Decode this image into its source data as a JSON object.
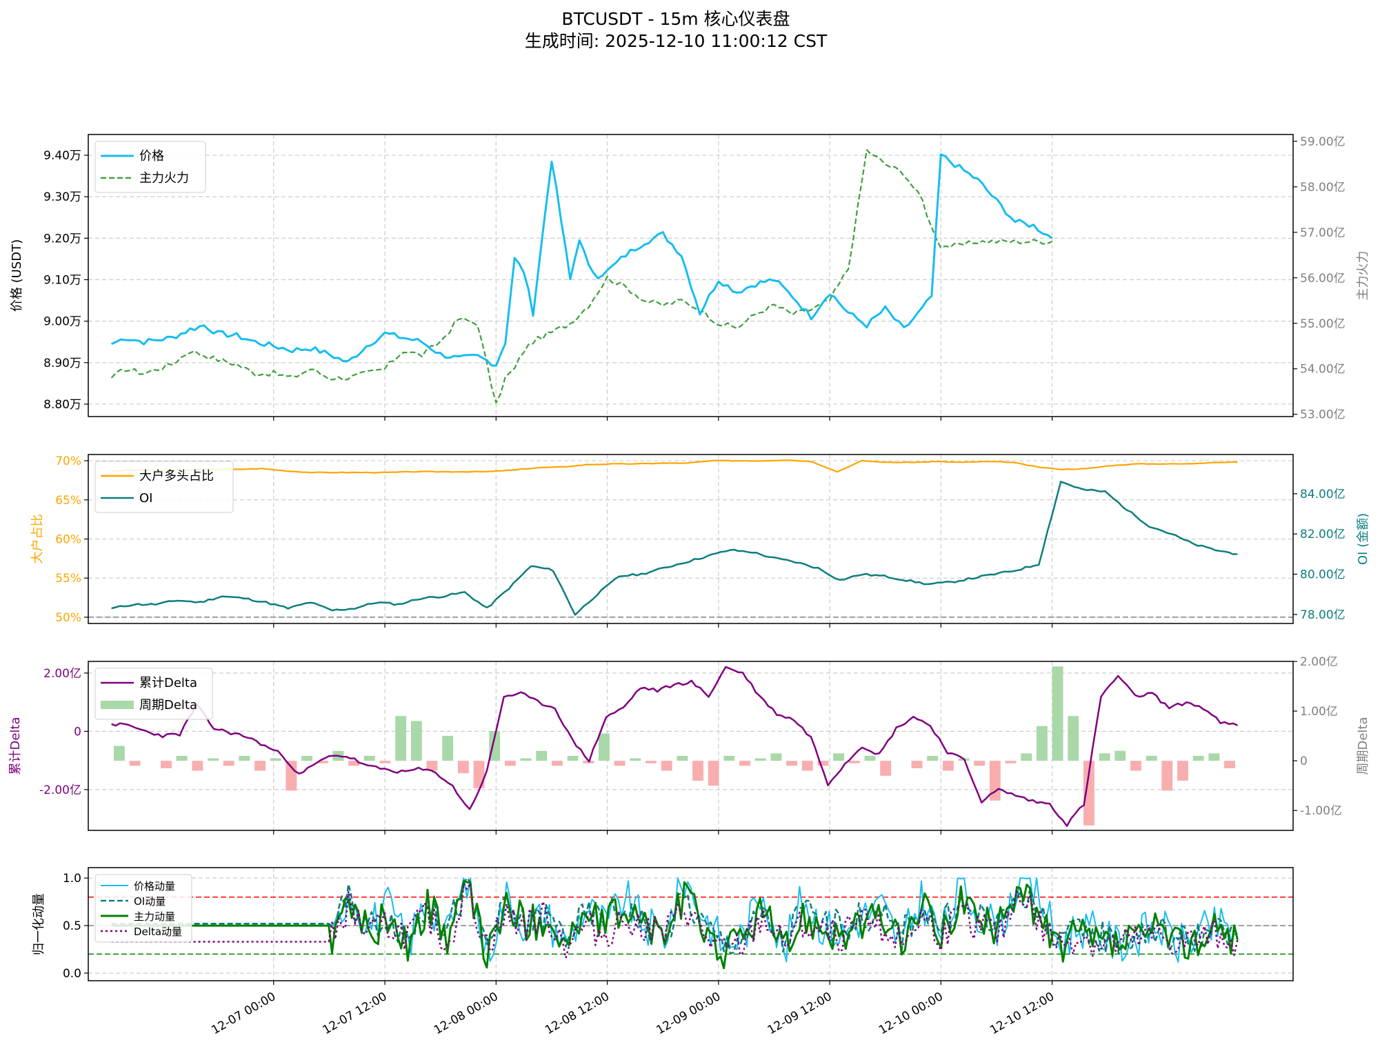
{
  "figure": {
    "title_line1": "BTCUSDT - 15m 核心仪表盘",
    "title_line2": "生成时间: 2025-12-10 11:00:12 CST"
  },
  "colors": {
    "price": "#16bdf0",
    "main_force": "#3f9e3f",
    "big_long_ratio": "#ffa500",
    "oi": "#0e7d7d",
    "cum_delta": "#7f007f",
    "bar_pos": "#a9d8a9",
    "bar_neg": "#f8aeae",
    "right_axis_gray": "#808080",
    "mom_oi": "#0e7d7d",
    "mom_main": "#008000",
    "mom_delta": "#800080",
    "ref_red": "#ff0000",
    "ref_gray": "#808080",
    "ref_green": "#008000"
  },
  "chart_data": [
    {
      "type": "line",
      "panel": "price",
      "ylabel": "价格 (USDT)",
      "ylabel_right": "主力火力",
      "x_ticks": [
        "12-07 00:00",
        "12-07 12:00",
        "12-08 00:00",
        "12-08 12:00",
        "12-09 00:00",
        "12-09 12:00",
        "12-10 00:00",
        "12-10 12:00"
      ],
      "y_ticks": [
        "8.80万",
        "8.90万",
        "9.00万",
        "9.10万",
        "9.20万",
        "9.30万",
        "9.40万"
      ],
      "y_ticks_right": [
        "53.00亿",
        "54.00亿",
        "55.00亿",
        "56.00亿",
        "57.00亿",
        "58.00亿",
        "59.00亿"
      ],
      "ylim": [
        87700,
        94500
      ],
      "ylim_right": [
        52.95,
        59.15
      ],
      "grid": true,
      "legend": "upper left",
      "x_hours_from_12_07_00": [
        -17.5,
        -16,
        -14,
        -12.5,
        -11,
        -9,
        -7.5,
        -6,
        -4,
        -2,
        0,
        2,
        4,
        6,
        8,
        10,
        12,
        14,
        16,
        18,
        20,
        22,
        24,
        25,
        26,
        27,
        28,
        30,
        32,
        33,
        34,
        35,
        36,
        38,
        40,
        42,
        44,
        46,
        48,
        50,
        52,
        54,
        56,
        58,
        60,
        62,
        64,
        66,
        68,
        70,
        71,
        72,
        74,
        76,
        78,
        80,
        82,
        84,
        86,
        88,
        90,
        92,
        94,
        96,
        98,
        100,
        102,
        104
      ],
      "series": [
        {
          "name": "价格",
          "axis": "left",
          "values": [
            89450,
            89600,
            89500,
            89550,
            89600,
            89800,
            89900,
            89700,
            89650,
            89500,
            89400,
            89300,
            89350,
            89200,
            89000,
            89400,
            89700,
            89600,
            89500,
            89200,
            89100,
            89150,
            88950,
            89500,
            91500,
            91200,
            90200,
            93900,
            91000,
            92000,
            91300,
            91100,
            91200,
            91600,
            91900,
            92100,
            91600,
            90200,
            91000,
            90700,
            90900,
            91000,
            90600,
            90100,
            90700,
            90200,
            89900,
            90300,
            89800,
            90300,
            90600,
            94000,
            93700,
            93400,
            92900,
            92400,
            92300,
            92000
          ]
        },
        {
          "name": "主力火力",
          "axis": "right",
          "values": [
            53.8,
            54.0,
            53.9,
            54.0,
            54.1,
            54.4,
            54.3,
            54.2,
            54.1,
            53.9,
            53.9,
            53.8,
            54.0,
            53.8,
            53.8,
            53.9,
            54.0,
            54.4,
            54.3,
            54.6,
            55.1,
            55.0,
            53.2,
            53.8,
            54.0,
            54.4,
            54.6,
            54.8,
            55.0,
            55.2,
            55.4,
            55.7,
            56.0,
            55.8,
            55.5,
            55.4,
            55.5,
            55.3,
            55.0,
            54.9,
            55.2,
            55.4,
            55.2,
            55.3,
            55.5,
            56.2,
            58.8,
            58.5,
            58.3,
            57.7,
            57.1,
            56.7,
            56.7,
            56.8,
            56.8,
            56.8,
            56.8,
            56.8
          ]
        }
      ]
    },
    {
      "type": "line",
      "panel": "ratio_oi",
      "ylabel": "大户占比",
      "ylabel_right": "OI (金额)",
      "y_ticks": [
        "50%",
        "55%",
        "60%",
        "65%",
        "70%"
      ],
      "y_ticks_right": [
        "78.00亿",
        "80.00亿",
        "82.00亿",
        "84.00亿"
      ],
      "ylim": [
        49.2,
        70.8
      ],
      "ylim_right": [
        77.55,
        85.95
      ],
      "grid": true,
      "legend": "upper left",
      "reference_line": 50,
      "series": [
        {
          "name": "大户多头占比",
          "axis": "left",
          "values": [
            68.7,
            68.8,
            68.8,
            68.8,
            68.9,
            68.9,
            69.0,
            68.7,
            68.5,
            68.5,
            68.5,
            68.5,
            68.6,
            68.6,
            68.6,
            68.6,
            68.8,
            69.1,
            69.2,
            69.5,
            69.6,
            69.6,
            69.7,
            69.7,
            70.0,
            70.0,
            70.0,
            70.1,
            69.9,
            68.6,
            70.0,
            69.8,
            69.8,
            69.9,
            69.8,
            69.9,
            69.8,
            69.2,
            68.9,
            69.0,
            69.4,
            69.6,
            69.6,
            69.6,
            69.8,
            69.8
          ]
        },
        {
          "name": "OI",
          "axis": "right",
          "values": [
            78.3,
            78.5,
            78.5,
            78.7,
            78.6,
            78.9,
            78.8,
            78.6,
            78.3,
            78.6,
            78.2,
            78.3,
            78.6,
            78.5,
            78.8,
            78.9,
            79.1,
            78.3,
            79.3,
            80.4,
            80.2,
            78.0,
            79.0,
            79.9,
            80.0,
            80.3,
            80.6,
            80.9,
            81.2,
            81.1,
            80.8,
            80.6,
            80.3,
            79.7,
            80.0,
            79.9,
            79.7,
            79.5,
            79.6,
            79.8,
            80.0,
            80.2,
            80.5,
            84.6,
            84.2,
            84.1,
            83.2,
            82.4,
            82.0,
            81.5,
            81.2,
            81.0
          ]
        }
      ]
    },
    {
      "type": "bar+line",
      "panel": "delta",
      "ylabel": "累计Delta",
      "ylabel_right": "周期Delta",
      "y_ticks": [
        "-2.00亿",
        "0",
        "2.00亿"
      ],
      "y_ticks_right": [
        "-1.00亿",
        "0",
        "1.00亿",
        "2.00亿"
      ],
      "ylim": [
        -3.4,
        2.4
      ],
      "ylim_right": [
        -1.4,
        2.0
      ],
      "grid": true,
      "legend": "upper left",
      "series": [
        {
          "name": "累计Delta",
          "type": "line",
          "axis": "left",
          "values": [
            0.25,
            0.2,
            0.0,
            -0.15,
            -0.1,
            0.9,
            0.1,
            -0.05,
            -0.2,
            -0.5,
            -0.8,
            -1.5,
            -1.1,
            -0.8,
            -0.9,
            -1.2,
            -1.3,
            -1.4,
            -1.3,
            -1.4,
            -1.9,
            -2.7,
            -1.4,
            1.2,
            1.3,
            1.0,
            0.8,
            -0.3,
            -1.0,
            0.5,
            0.8,
            1.5,
            1.4,
            1.6,
            1.7,
            1.2,
            2.2,
            2.0,
            1.2,
            0.6,
            0.4,
            -0.2,
            -1.8,
            -1.1,
            -0.5,
            -0.8,
            0.1,
            0.5,
            0.2,
            -0.7,
            -1.0,
            -2.4,
            -2.0,
            -2.2,
            -2.4,
            -2.5,
            -3.2,
            -2.5,
            1.2,
            1.9,
            1.2,
            1.3,
            0.8,
            1.0,
            0.8,
            0.3,
            0.2
          ]
        },
        {
          "name": "周期Delta",
          "type": "bar",
          "axis": "right",
          "values": [
            0.3,
            -0.1,
            0.0,
            -0.15,
            0.1,
            -0.2,
            0.05,
            -0.1,
            0.1,
            -0.2,
            0.05,
            -0.6,
            0.1,
            -0.05,
            0.2,
            -0.1,
            0.1,
            -0.05,
            0.9,
            0.8,
            -0.2,
            0.5,
            -0.25,
            -0.55,
            0.6,
            -0.1,
            0.05,
            0.2,
            -0.1,
            0.1,
            -0.05,
            0.55,
            -0.1,
            0.05,
            -0.05,
            -0.2,
            0.1,
            -0.4,
            -0.5,
            0.1,
            -0.1,
            0.05,
            0.15,
            -0.1,
            -0.2,
            -0.1,
            0.15,
            -0.05,
            0.1,
            -0.3,
            0.0,
            -0.15,
            0.1,
            -0.2,
            0.05,
            -0.1,
            -0.8,
            -0.05,
            0.15,
            0.7,
            1.9,
            0.9,
            -1.3,
            0.15,
            0.2,
            -0.2,
            0.1,
            -0.6,
            -0.4,
            0.1,
            0.15,
            -0.15
          ]
        }
      ]
    },
    {
      "type": "line",
      "panel": "momentum",
      "ylabel": "归一化动量",
      "y_ticks": [
        "0.0",
        "0.5",
        "1.0"
      ],
      "ylim": [
        -0.08,
        1.11
      ],
      "grid": true,
      "legend": "upper left",
      "reference_lines": [
        0.8,
        0.5,
        0.2
      ],
      "series": [
        {
          "name": "价格动量",
          "values": [
            0.5,
            0.5,
            0.5,
            0.5,
            0.5,
            0.5,
            0.4,
            0.9,
            0.3,
            0.8,
            0.6,
            0.2,
            0.9,
            0.5,
            0.7,
            0.3,
            0.8,
            0.4,
            1.0,
            0.2,
            0.8,
            0.5,
            0.6,
            0.3,
            0.7,
            0.5,
            0.8,
            0.5,
            0.4,
            1.0,
            0.6,
            0.3,
            0.4,
            0.9,
            0.2,
            0.8,
            0.5,
            0.4,
            0.6,
            0.7,
            0.3,
            0.8,
            0.4,
            0.9,
            0.6,
            0.5,
            1.0,
            0.8,
            0.3,
            0.5,
            0.4,
            0.3,
            0.4,
            0.5,
            0.3,
            0.4,
            0.5,
            0.4
          ]
        },
        {
          "name": "OI动量",
          "values": [
            0.52,
            0.52,
            0.52,
            0.52,
            0.52,
            0.52,
            0.45,
            0.7,
            0.4,
            0.7,
            0.6,
            0.4,
            0.8,
            0.5,
            0.6,
            0.4,
            0.7,
            0.5,
            0.9,
            0.3,
            0.7,
            0.5,
            0.6,
            0.4,
            0.6,
            0.6,
            0.7,
            0.5,
            0.4,
            0.8,
            0.5,
            0.3,
            0.4,
            0.6,
            0.3,
            0.7,
            0.5,
            0.5,
            0.6,
            0.6,
            0.4,
            0.7,
            0.5,
            0.7,
            0.6,
            0.5,
            0.9,
            0.6,
            0.4,
            0.4,
            0.4,
            0.35,
            0.4,
            0.45,
            0.35,
            0.4,
            0.45,
            0.4
          ]
        },
        {
          "name": "主力动量",
          "values": [
            0.5,
            0.5,
            0.5,
            0.5,
            0.5,
            0.5,
            0.4,
            0.7,
            0.3,
            0.8,
            0.5,
            0.2,
            0.8,
            0.4,
            0.6,
            0.3,
            0.7,
            0.4,
            0.9,
            0.2,
            0.7,
            0.5,
            0.6,
            0.3,
            0.6,
            0.5,
            0.7,
            0.5,
            0.4,
            0.8,
            0.5,
            0.2,
            0.4,
            0.7,
            0.2,
            0.6,
            0.5,
            0.4,
            0.5,
            0.6,
            0.3,
            0.7,
            0.4,
            0.8,
            0.5,
            0.5,
            1.0,
            0.5,
            0.3,
            0.4,
            0.3,
            0.3,
            0.35,
            0.45,
            0.3,
            0.35,
            0.45,
            0.35
          ]
        },
        {
          "name": "Delta动量",
          "values": [
            0.33,
            0.33,
            0.33,
            0.33,
            0.33,
            0.33,
            0.5,
            0.9,
            0.4,
            1.0,
            0.5,
            0.3,
            0.7,
            0.4,
            0.5,
            0.4,
            0.6,
            0.3,
            0.9,
            0.3,
            0.6,
            0.5,
            0.6,
            0.3,
            0.5,
            0.4,
            0.6,
            0.5,
            0.4,
            0.7,
            0.4,
            0.2,
            0.3,
            0.6,
            0.3,
            0.5,
            0.4,
            0.4,
            0.5,
            0.5,
            0.3,
            0.6,
            0.4,
            0.6,
            0.5,
            0.4,
            0.9,
            0.5,
            0.3,
            0.4,
            0.3,
            0.3,
            0.35,
            0.4,
            0.3,
            0.35,
            0.4,
            0.35
          ]
        }
      ]
    }
  ]
}
